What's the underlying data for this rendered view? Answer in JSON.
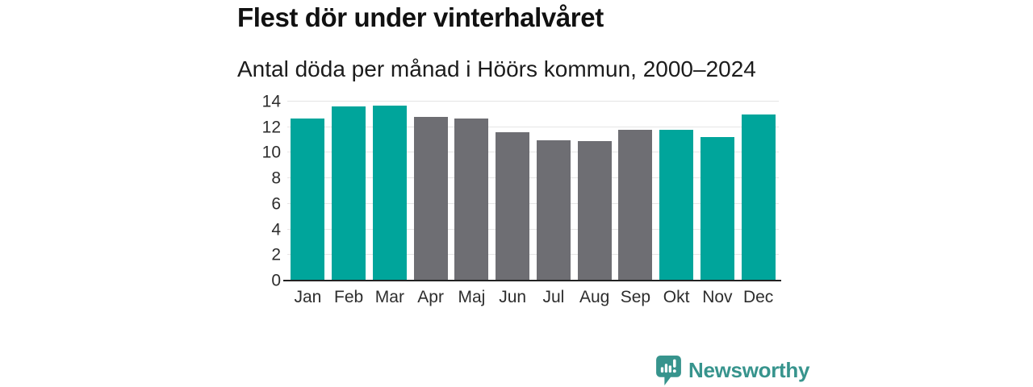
{
  "title": "Flest dör under vinterhalvåret",
  "subtitle": "Antal döda per månad i Höörs kommun, 2000–2024",
  "chart_data": {
    "type": "bar",
    "title": "Flest dör under vinterhalvåret",
    "subtitle": "Antal döda per månad i Höörs kommun, 2000–2024",
    "categories": [
      "Jan",
      "Feb",
      "Mar",
      "Apr",
      "Maj",
      "Jun",
      "Jul",
      "Aug",
      "Sep",
      "Okt",
      "Nov",
      "Dec"
    ],
    "values": [
      12.7,
      13.6,
      13.7,
      12.8,
      12.7,
      11.6,
      11.0,
      10.9,
      11.8,
      11.8,
      11.2,
      13.0
    ],
    "bar_colors": [
      "#00a59b",
      "#00a59b",
      "#00a59b",
      "#6e6e73",
      "#6e6e73",
      "#6e6e73",
      "#6e6e73",
      "#6e6e73",
      "#6e6e73",
      "#00a59b",
      "#00a59b",
      "#00a59b"
    ],
    "highlight_color": "#00a59b",
    "muted_color": "#6e6e73",
    "highlighted_months": [
      "Jan",
      "Feb",
      "Mar",
      "Okt",
      "Nov",
      "Dec"
    ],
    "xlabel": "",
    "ylabel": "",
    "ylim": [
      0,
      14
    ],
    "yticks": [
      0,
      2,
      4,
      6,
      8,
      10,
      12,
      14
    ],
    "grid": true,
    "legend": false
  },
  "branding": {
    "logo_text": "Newsworthy",
    "logo_icon": "bar-chart-speech-bubble-icon",
    "logo_color": "#37948d"
  }
}
